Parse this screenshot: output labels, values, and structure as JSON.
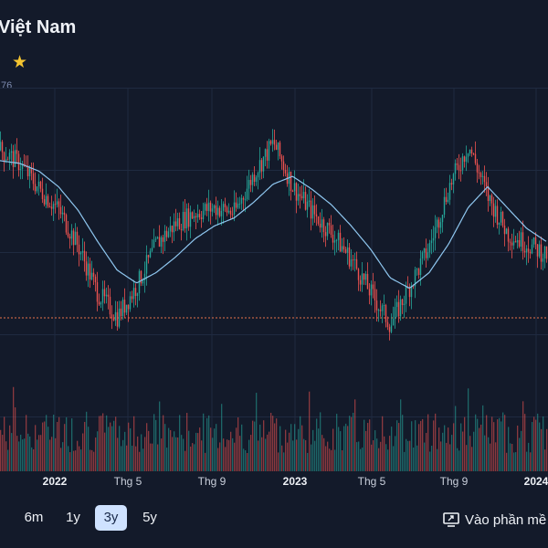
{
  "header": {
    "title": "Việt Nam",
    "price_fragment": ".76",
    "star_icon": "star-icon"
  },
  "x_axis": [
    {
      "label": "2022",
      "bold": true
    },
    {
      "label": "Thg 5",
      "bold": false
    },
    {
      "label": "Thg 9",
      "bold": false
    },
    {
      "label": "2023",
      "bold": true
    },
    {
      "label": "Thg 5",
      "bold": false
    },
    {
      "label": "Thg 9",
      "bold": false
    },
    {
      "label": "2024",
      "bold": true
    }
  ],
  "range_buttons": [
    {
      "label": "6m",
      "active": false
    },
    {
      "label": "1y",
      "active": false
    },
    {
      "label": "3y",
      "active": true
    },
    {
      "label": "5y",
      "active": false
    }
  ],
  "open_app": {
    "label": "Vào phần mề",
    "icon": "screen-share-icon"
  },
  "colors": {
    "background": "#131a2a",
    "up": "#26a69a",
    "down": "#ef5350",
    "moving_average": "#8fc7f0",
    "reference_line": "#e8734a",
    "active_range": "#cfe2ff"
  },
  "chart_data": {
    "type": "candlestick",
    "description_series": [
      "price",
      "moving-average",
      "volume"
    ],
    "price_trend": [
      97,
      92,
      82,
      74,
      60,
      42,
      33,
      45,
      61,
      69,
      73,
      75,
      73,
      88,
      100,
      83,
      73,
      65,
      55,
      42,
      30,
      45,
      60,
      83,
      99,
      79,
      65,
      61,
      57
    ],
    "moving_average_trend": [
      93,
      92,
      89,
      83,
      74,
      62,
      51,
      46,
      50,
      56,
      63,
      68,
      71,
      77,
      84,
      87,
      82,
      76,
      68,
      59,
      48,
      44,
      50,
      61,
      75,
      83,
      75,
      67,
      62
    ]
  }
}
